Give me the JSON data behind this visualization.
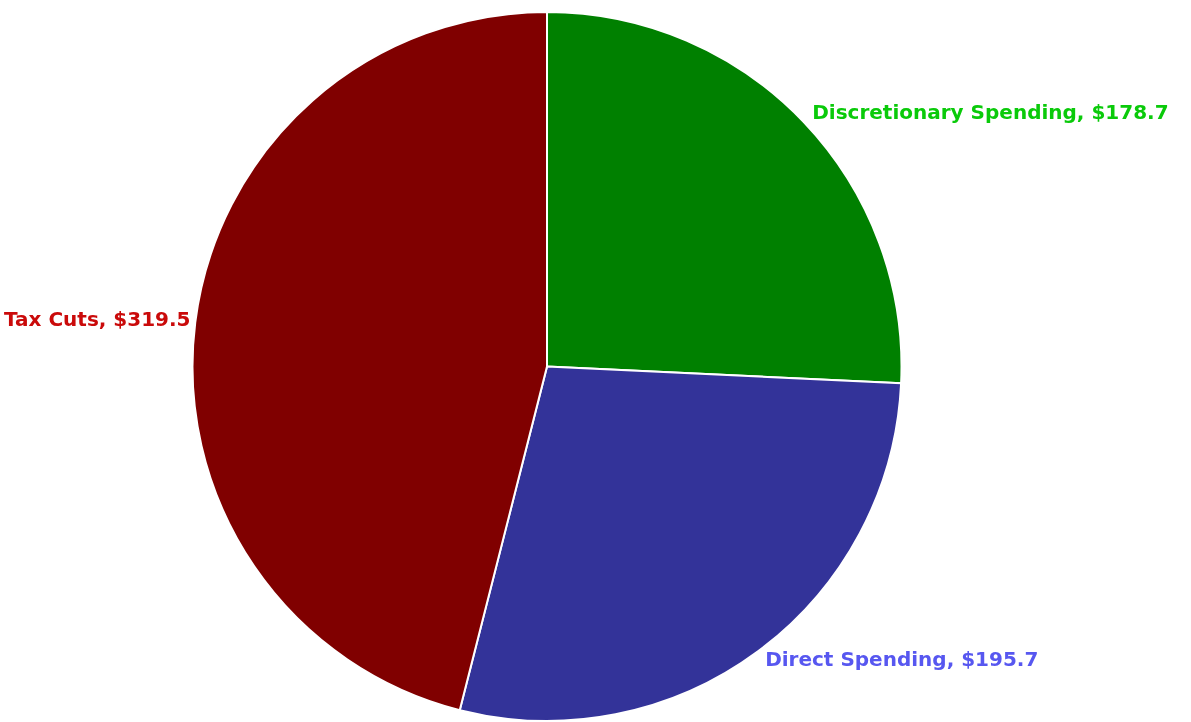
{
  "chart_data": {
    "type": "pie",
    "categories": [
      "Discretionary Spending",
      "Direct Spending",
      "Tax Cuts"
    ],
    "values": [
      178.7,
      195.7,
      319.5
    ],
    "value_labels": [
      "$178.7",
      "$195.7",
      "$319.5"
    ],
    "colors": [
      "#008000",
      "#333399",
      "#800000"
    ],
    "legend": false
  }
}
